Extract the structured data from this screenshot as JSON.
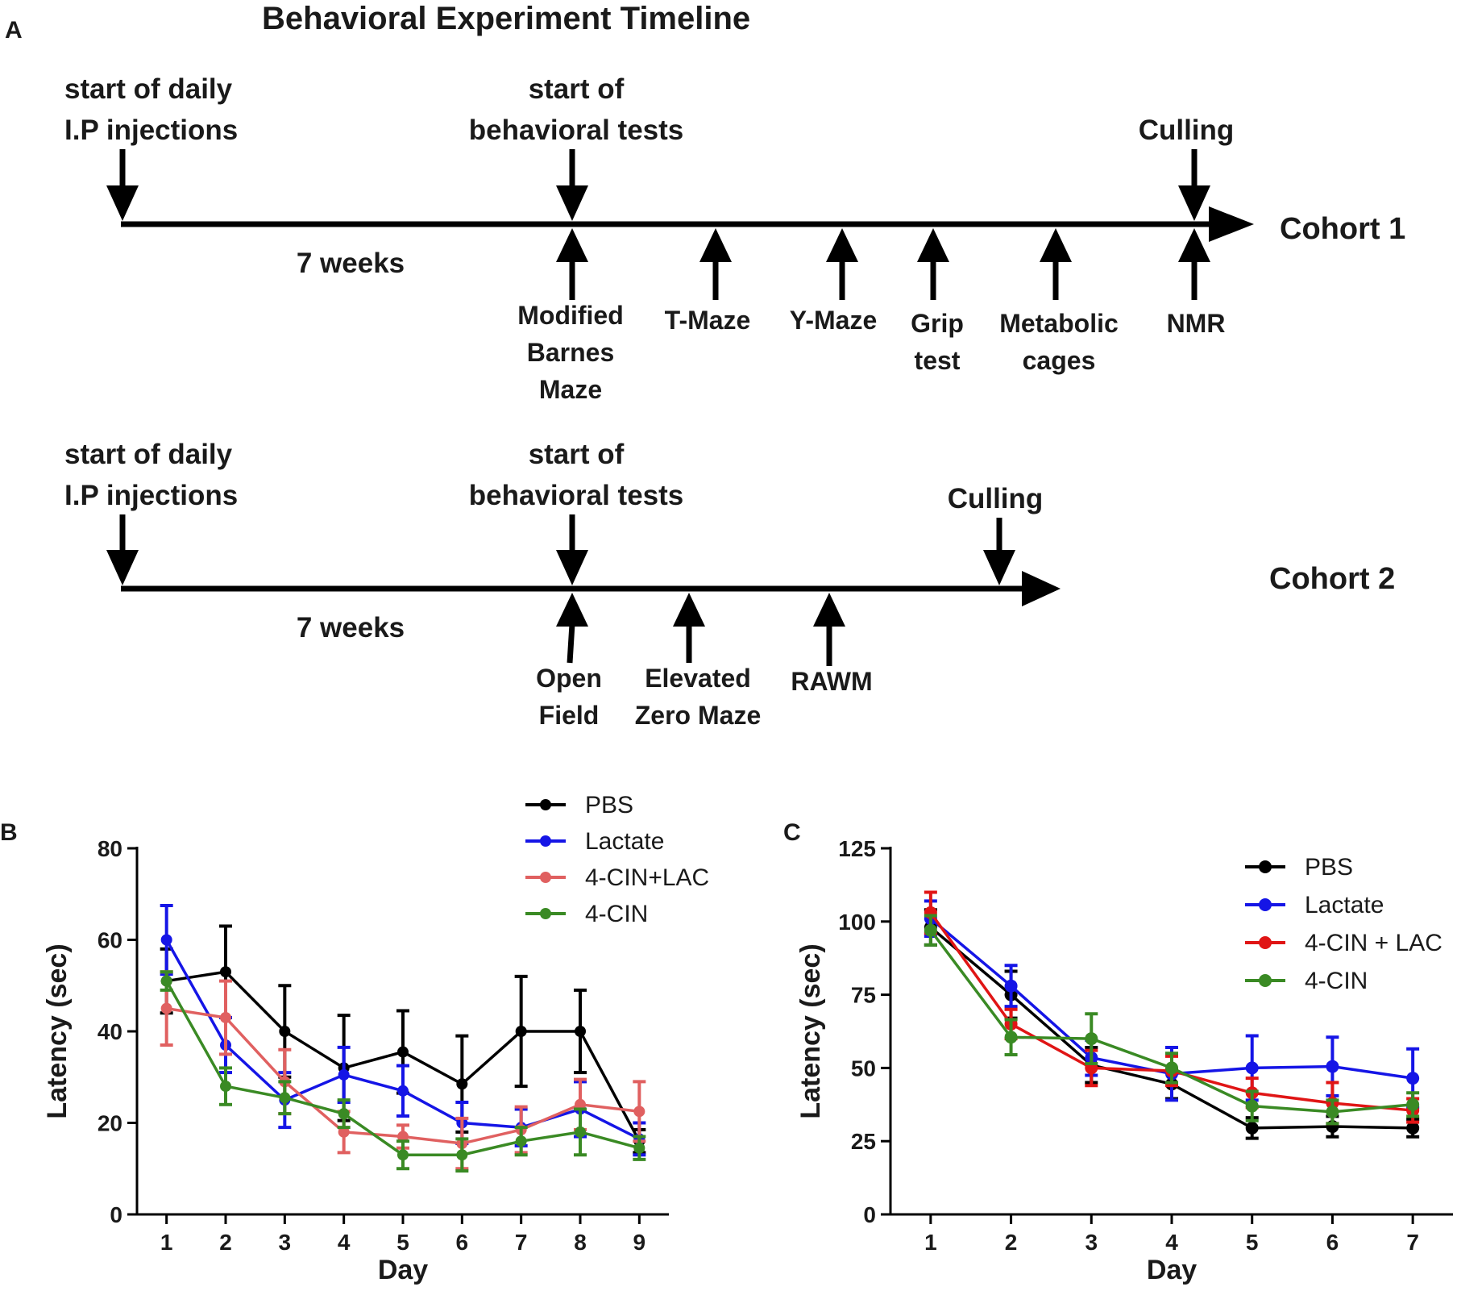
{
  "panel_a": {
    "letter": "A",
    "title": "Behavioral Experiment Timeline",
    "cohort1": {
      "name": "Cohort 1",
      "start_label": [
        "start of daily",
        "I.P injections"
      ],
      "tests_label": [
        "start of",
        "behavioral tests"
      ],
      "culling_label": "Culling",
      "duration": "7 weeks",
      "tests": [
        [
          "Modified",
          "Barnes",
          "Maze"
        ],
        [
          "T-Maze"
        ],
        [
          "Y-Maze"
        ],
        [
          "Grip",
          "test"
        ],
        [
          "Metabolic",
          "cages"
        ],
        [
          "NMR"
        ]
      ]
    },
    "cohort2": {
      "name": "Cohort 2",
      "start_label": [
        "start of daily",
        "I.P injections"
      ],
      "tests_label": [
        "start of",
        "behavioral tests"
      ],
      "culling_label": "Culling",
      "duration": "7 weeks",
      "tests": [
        [
          "Open",
          "Field"
        ],
        [
          "Elevated",
          "Zero Maze"
        ],
        [
          "RAWM"
        ]
      ]
    }
  },
  "chart_data": [
    {
      "panel": "B",
      "type": "line",
      "title": "",
      "xlabel": "Day",
      "ylabel": "Latency (sec)",
      "x": [
        1,
        2,
        3,
        4,
        5,
        6,
        7,
        8,
        9
      ],
      "xlim": [
        0.5,
        9.5
      ],
      "ylim": [
        0,
        80
      ],
      "yticks": [
        0,
        20,
        40,
        60,
        80
      ],
      "legend": "top-center",
      "series": [
        {
          "name": "PBS",
          "color": "#000000",
          "values": [
            51,
            53,
            40,
            32,
            35.5,
            28.5,
            40,
            40,
            16
          ],
          "err": [
            7,
            10,
            10,
            11.5,
            9,
            10.5,
            12,
            9,
            2.5
          ]
        },
        {
          "name": "Lactate",
          "color": "#1515e6",
          "values": [
            60,
            37,
            25,
            30.5,
            27,
            20,
            19,
            23,
            16.5
          ],
          "err": [
            7.5,
            6,
            6,
            6,
            5.5,
            4.5,
            4,
            6,
            3.5
          ]
        },
        {
          "name": "4-CIN+LAC",
          "color": "#e06060",
          "values": [
            45,
            43,
            29,
            18,
            17,
            15.5,
            18.5,
            24,
            22.5
          ],
          "err": [
            8,
            8,
            7,
            4.5,
            2.5,
            5.5,
            5,
            5.5,
            6.5
          ]
        },
        {
          "name": "4-CIN",
          "color": "#3a8a24",
          "values": [
            51,
            28,
            25.5,
            22,
            13,
            13,
            16,
            18,
            14.5
          ],
          "err": [
            2,
            4,
            3.5,
            3,
            3,
            3.5,
            3,
            5,
            2.5
          ]
        }
      ]
    },
    {
      "panel": "C",
      "type": "line",
      "title": "",
      "xlabel": "Day",
      "ylabel": "Latency (sec)",
      "x": [
        1,
        2,
        3,
        4,
        5,
        6,
        7
      ],
      "xlim": [
        0.5,
        7.5
      ],
      "ylim": [
        0,
        125
      ],
      "yticks": [
        0,
        25,
        50,
        75,
        100,
        125
      ],
      "legend": "top-right",
      "series": [
        {
          "name": "PBS",
          "color": "#000000",
          "values": [
            98,
            75,
            51,
            44.5,
            29.5,
            30,
            29.5
          ],
          "err": [
            6,
            8,
            6,
            5,
            3.5,
            3.5,
            3
          ]
        },
        {
          "name": "Lactate",
          "color": "#1515e6",
          "values": [
            101,
            78,
            53.5,
            48,
            50,
            50.5,
            46.5
          ],
          "err": [
            6,
            7,
            6,
            9,
            11,
            10,
            10
          ]
        },
        {
          "name": "4-CIN + LAC",
          "color": "#e01515",
          "values": [
            103,
            65,
            50,
            49,
            41.5,
            38,
            35.5
          ],
          "err": [
            7,
            5,
            6,
            5,
            5,
            7,
            4
          ]
        },
        {
          "name": "4-CIN",
          "color": "#3a8a24",
          "values": [
            97,
            60.5,
            60,
            50,
            37,
            35,
            37.5
          ],
          "err": [
            5,
            6,
            8.5,
            5,
            5,
            4,
            4
          ]
        }
      ]
    }
  ]
}
